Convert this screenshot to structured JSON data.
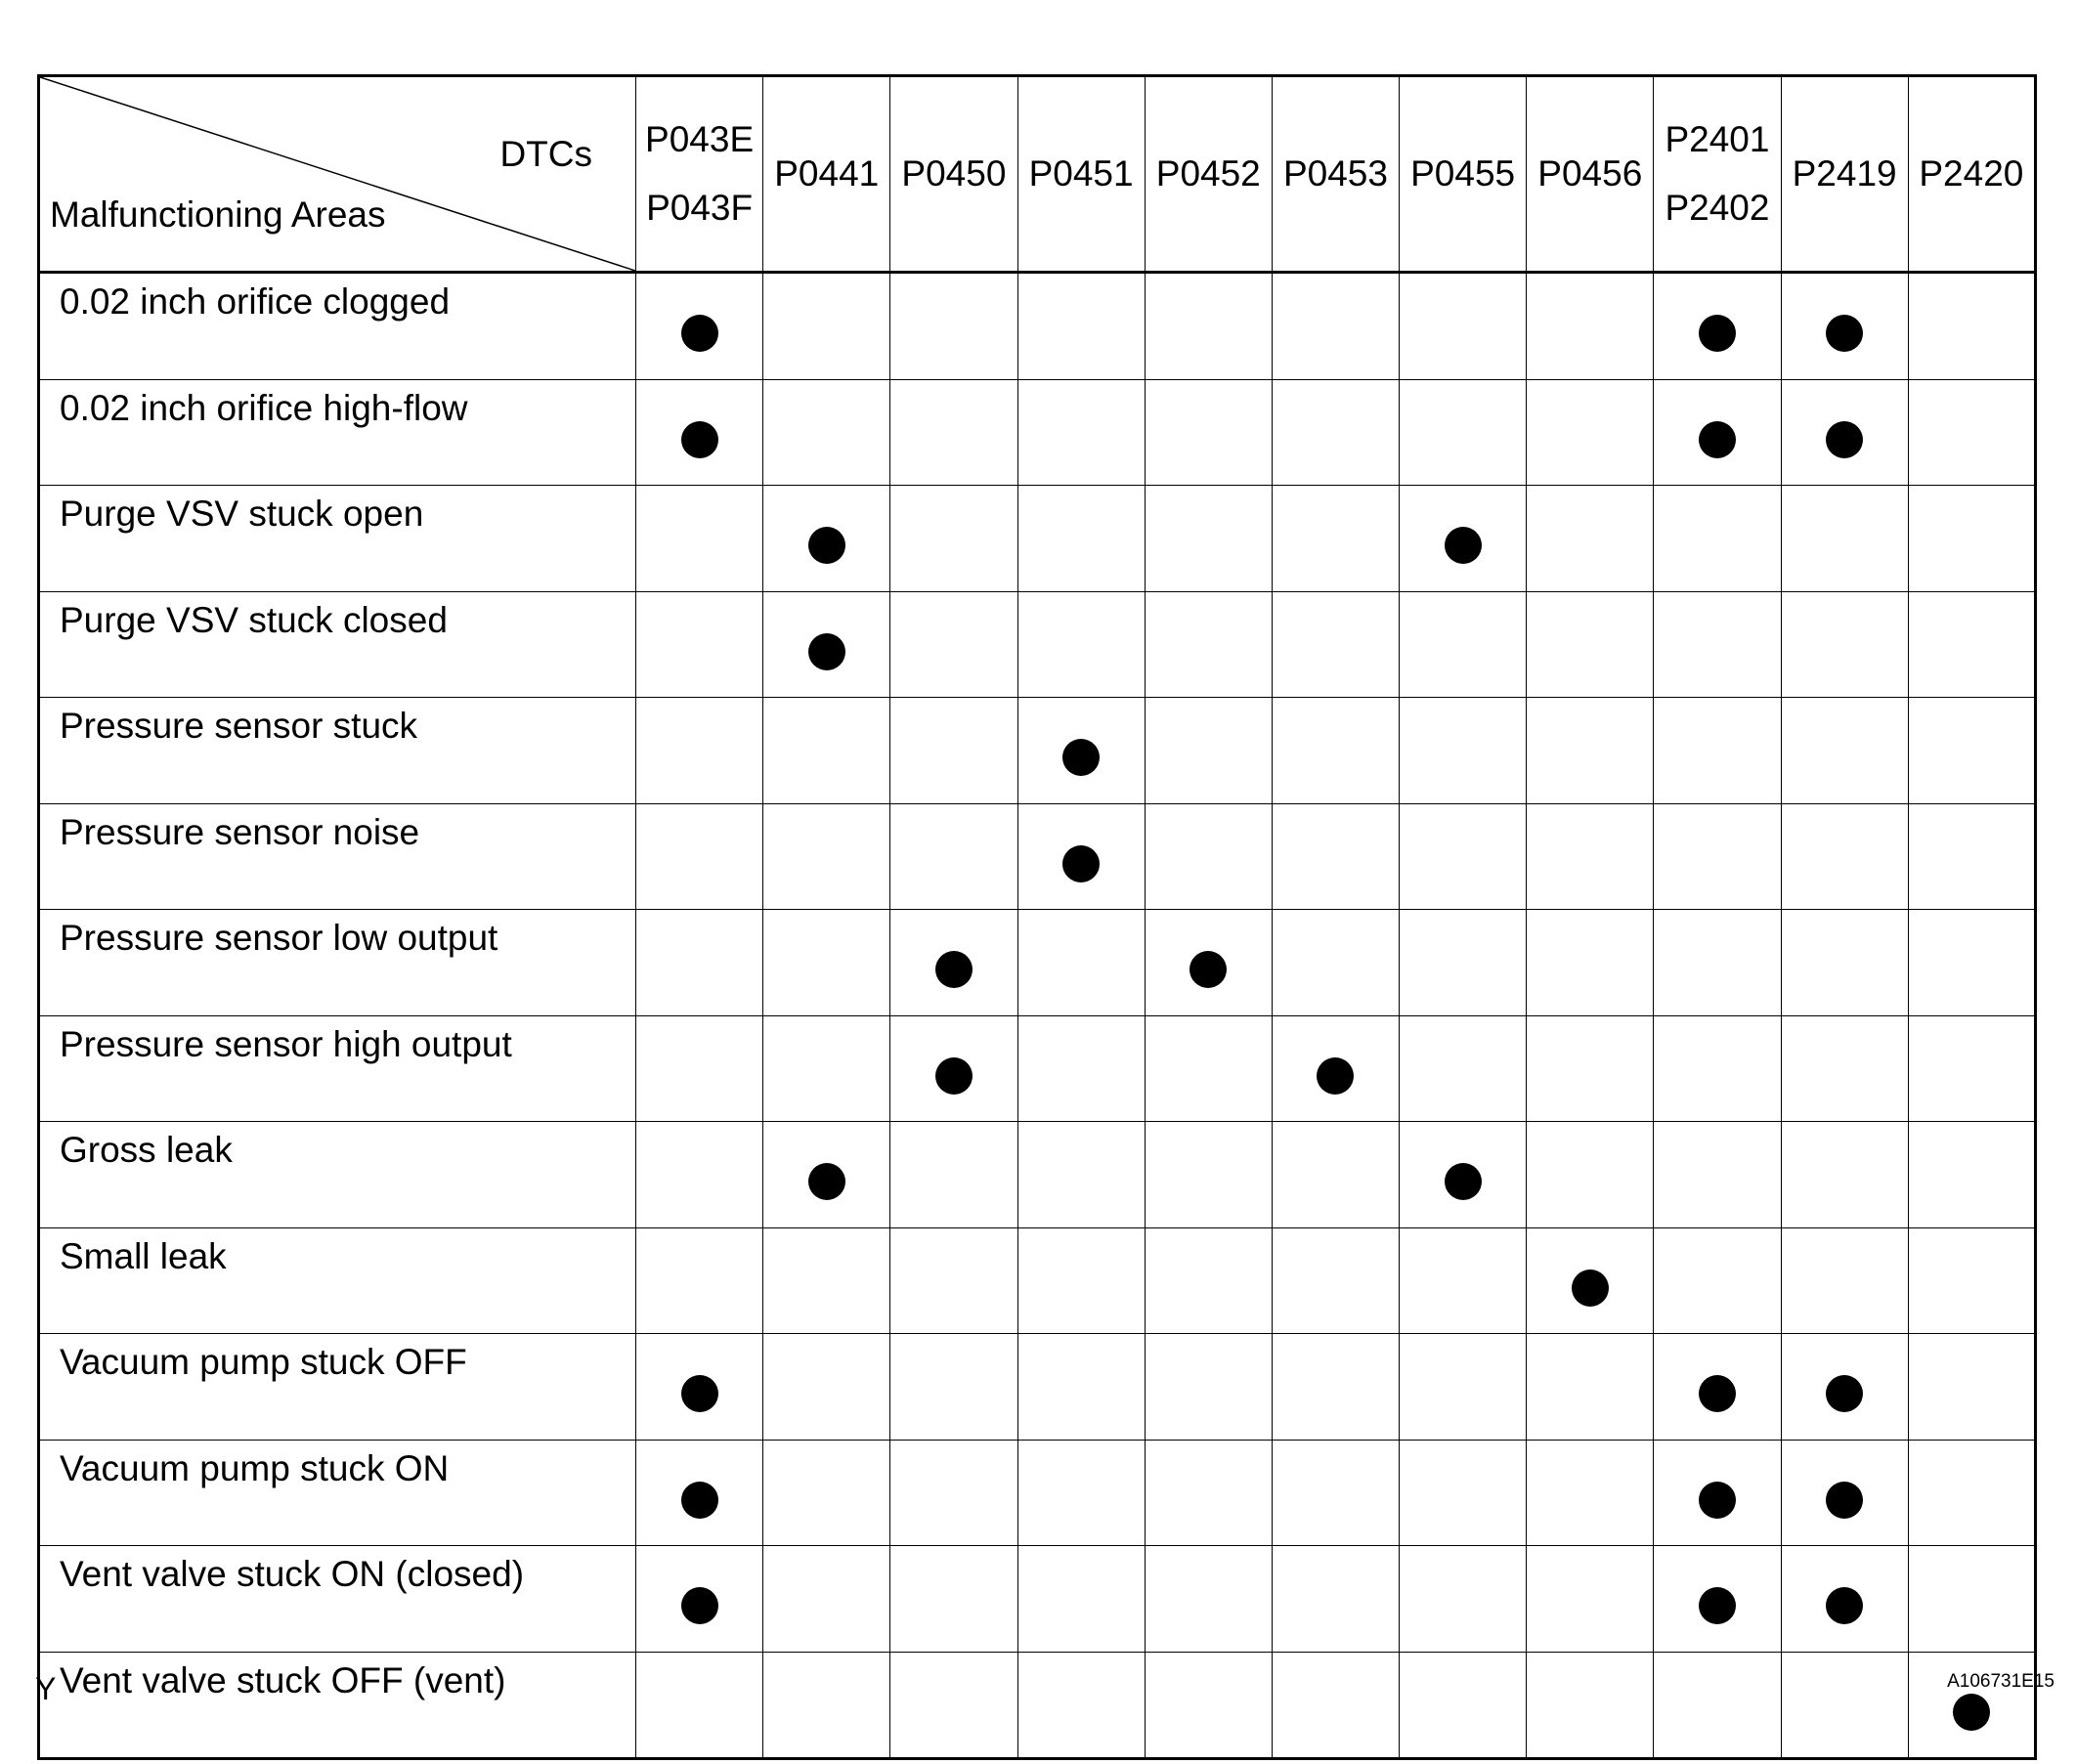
{
  "header": {
    "corner_top": "DTCs",
    "corner_bottom": "Malfunctioning Areas",
    "dtcs": [
      [
        "P043E",
        "P043F"
      ],
      [
        "P0441"
      ],
      [
        "P0450"
      ],
      [
        "P0451"
      ],
      [
        "P0452"
      ],
      [
        "P0453"
      ],
      [
        "P0455"
      ],
      [
        "P0456"
      ],
      [
        "P2401",
        "P2402"
      ],
      [
        "P2419"
      ],
      [
        "P2420"
      ]
    ]
  },
  "rows": [
    {
      "area": "0.02 inch orifice clogged",
      "marks": [
        0,
        8,
        9
      ]
    },
    {
      "area": "0.02 inch orifice high-flow",
      "marks": [
        0,
        8,
        9
      ]
    },
    {
      "area": "Purge VSV stuck open",
      "marks": [
        1,
        6
      ]
    },
    {
      "area": "Purge VSV stuck closed",
      "marks": [
        1
      ]
    },
    {
      "area": "Pressure sensor stuck",
      "marks": [
        3
      ]
    },
    {
      "area": "Pressure sensor noise",
      "marks": [
        3
      ]
    },
    {
      "area": "Pressure sensor low output",
      "marks": [
        2,
        4
      ]
    },
    {
      "area": "Pressure sensor high output",
      "marks": [
        2,
        5
      ]
    },
    {
      "area": "Gross leak",
      "marks": [
        1,
        6
      ]
    },
    {
      "area": "Small leak",
      "marks": [
        7
      ]
    },
    {
      "area": "Vacuum pump stuck OFF",
      "marks": [
        0,
        8,
        9
      ]
    },
    {
      "area": "Vacuum pump stuck ON",
      "marks": [
        0,
        8,
        9
      ]
    },
    {
      "area": "Vent valve stuck ON (closed)",
      "marks": [
        0,
        8,
        9
      ]
    },
    {
      "area": "Vent valve stuck OFF (vent)",
      "marks": [
        10
      ]
    }
  ],
  "mark_icon": "filled-circle",
  "footer": {
    "left": "Y",
    "right": "A106731E15"
  }
}
